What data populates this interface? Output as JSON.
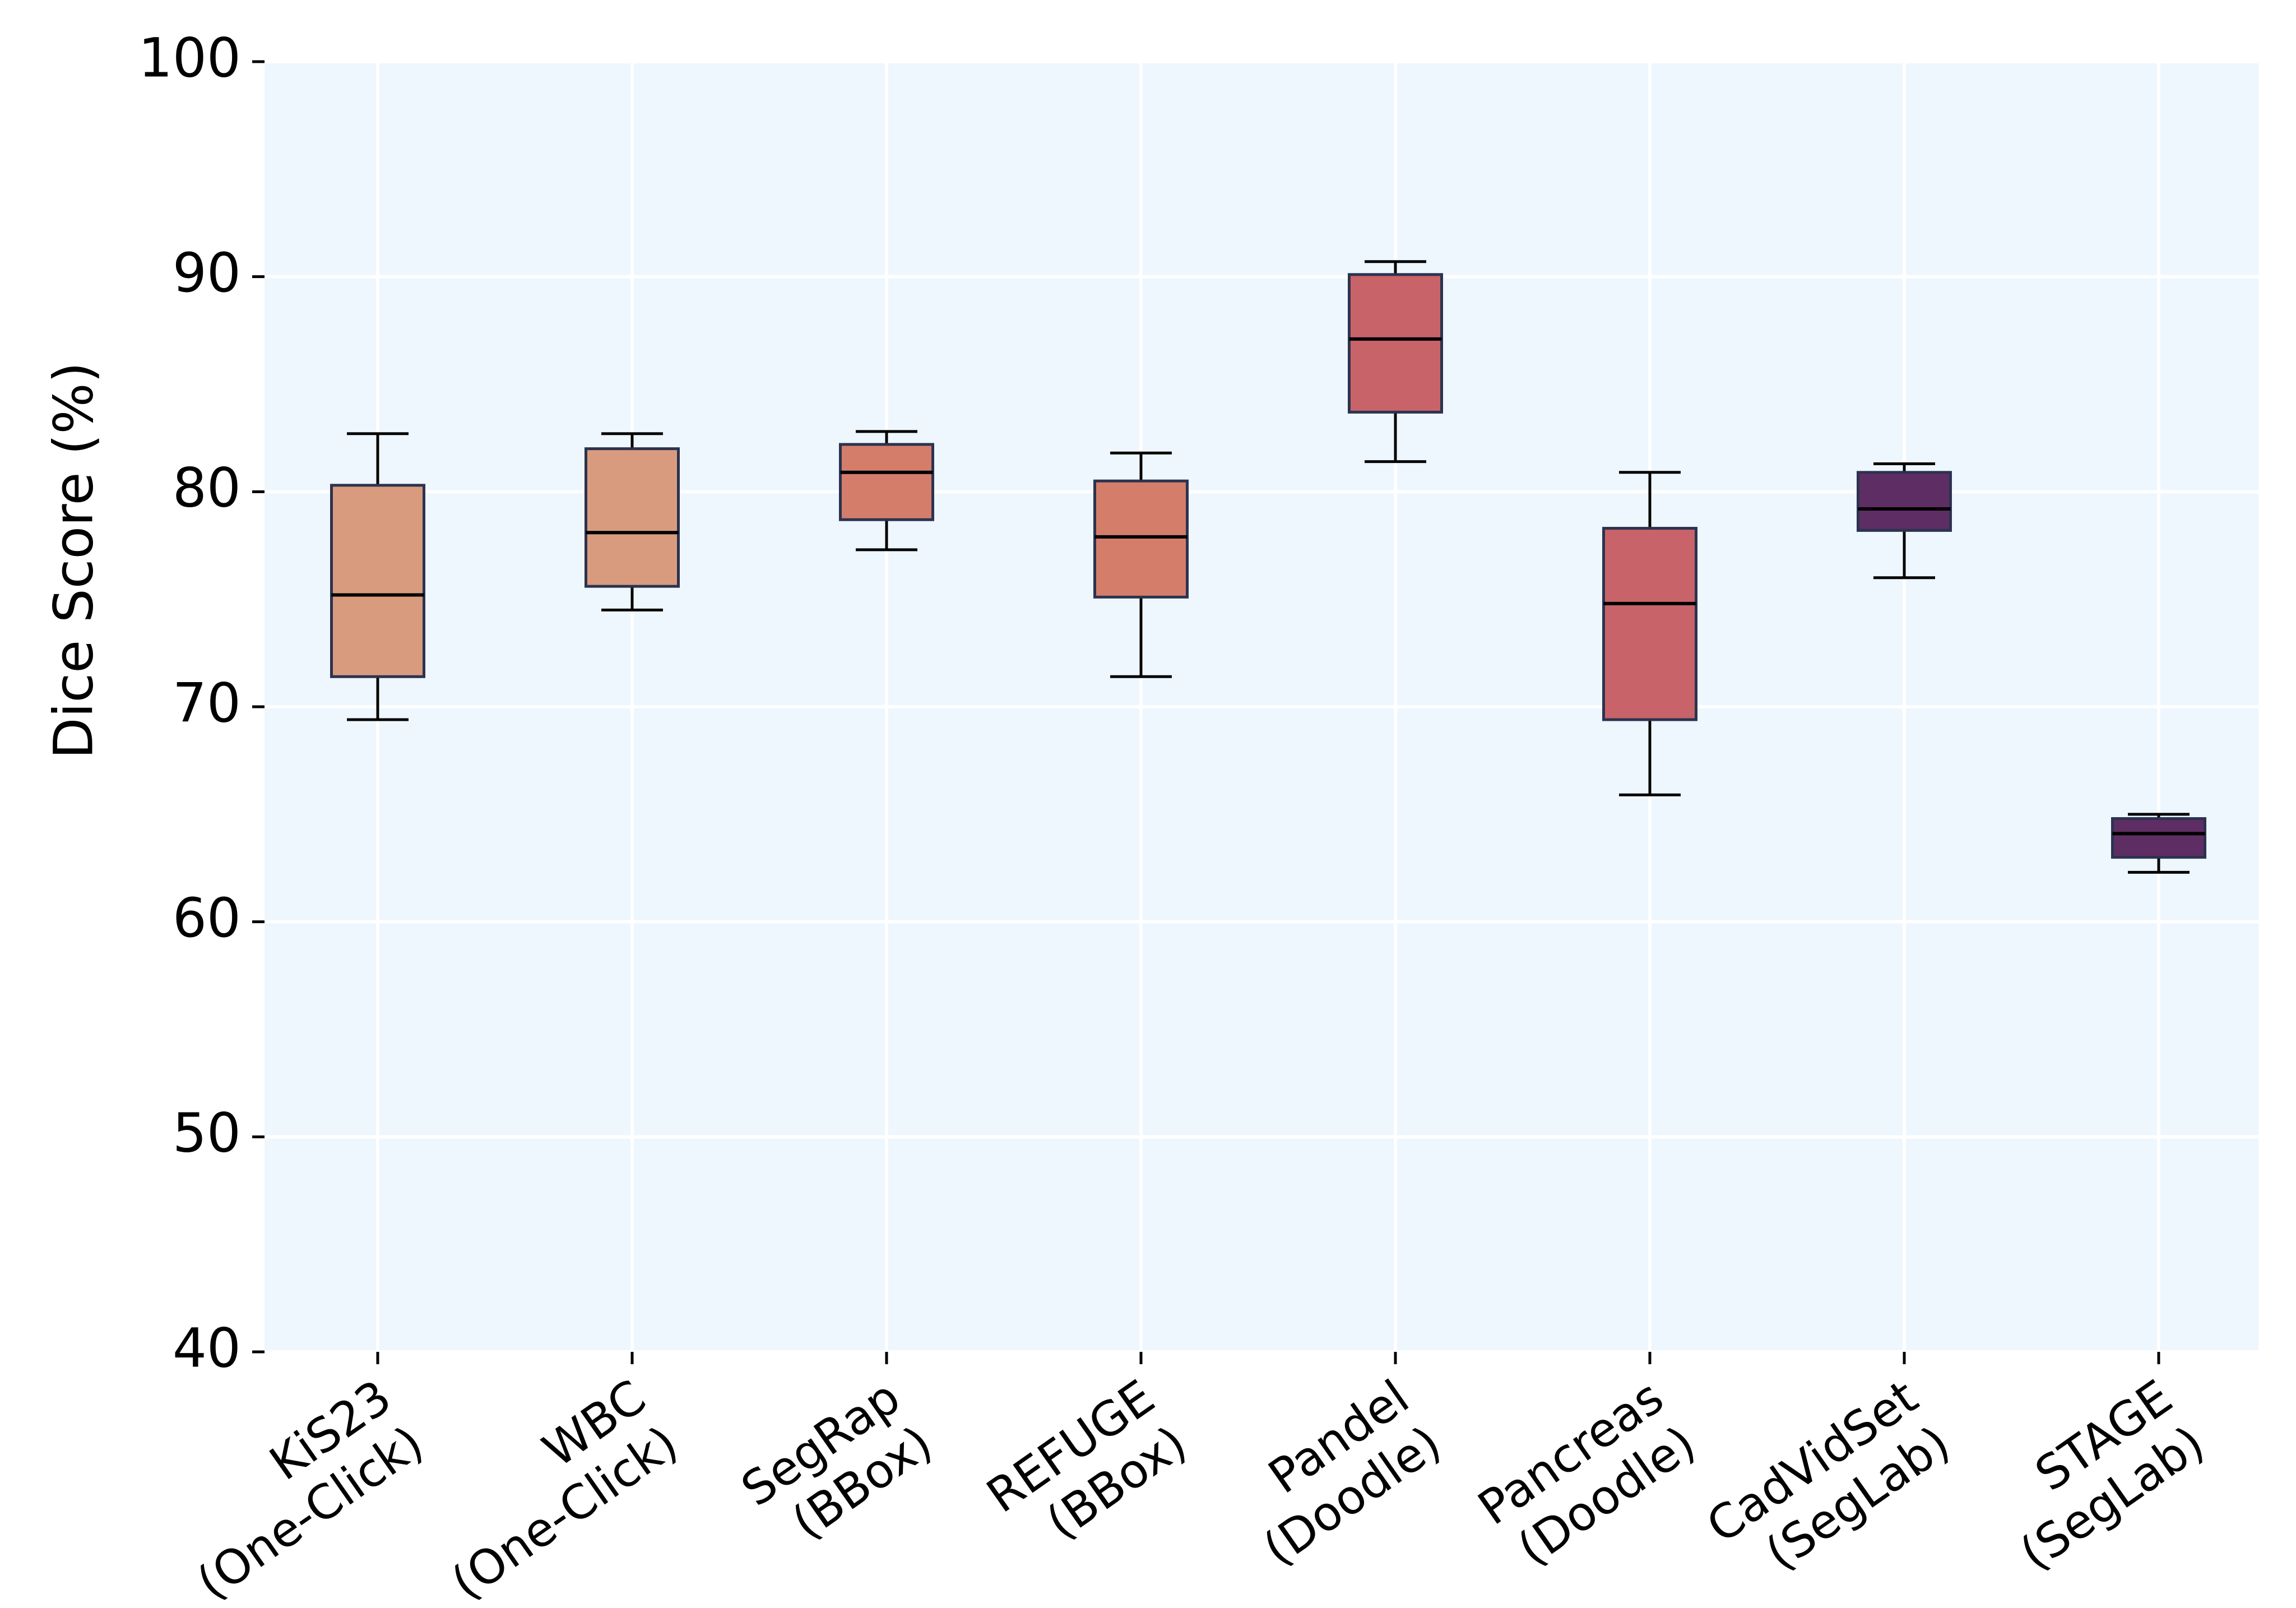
{
  "chart_data": {
    "type": "box",
    "title": "",
    "xlabel": "",
    "ylabel": "Dice Score (%)",
    "ylim": [
      40,
      100
    ],
    "yticks": [
      40,
      50,
      60,
      70,
      80,
      90,
      100
    ],
    "grid": true,
    "legend": "none",
    "categories": [
      "KiS23\n(One-Click)",
      "WBC\n(One-Click)",
      "SegRap\n(BBox)",
      "REFUGE\n(BBox)",
      "Pandel\n(Doodle)",
      "Pancreas\n(Doodle)",
      "CadVidSet\n(SegLab)",
      "STAGE\n(SegLab)"
    ],
    "boxes": [
      {
        "whisker_low": 69.4,
        "q1": 71.4,
        "median": 75.2,
        "q3": 80.3,
        "whisker_high": 82.7,
        "color": "#d99b7e"
      },
      {
        "whisker_low": 74.5,
        "q1": 75.6,
        "median": 78.1,
        "q3": 82.0,
        "whisker_high": 82.7,
        "color": "#d99b7e"
      },
      {
        "whisker_low": 77.3,
        "q1": 78.7,
        "median": 80.9,
        "q3": 82.2,
        "whisker_high": 82.8,
        "color": "#d57d6b"
      },
      {
        "whisker_low": 71.4,
        "q1": 75.1,
        "median": 77.9,
        "q3": 80.5,
        "whisker_high": 81.8,
        "color": "#d57d6b"
      },
      {
        "whisker_low": 81.4,
        "q1": 83.7,
        "median": 87.1,
        "q3": 90.1,
        "whisker_high": 90.7,
        "color": "#c86369"
      },
      {
        "whisker_low": 65.9,
        "q1": 69.4,
        "median": 74.8,
        "q3": 78.3,
        "whisker_high": 80.9,
        "color": "#c86369"
      },
      {
        "whisker_low": 76.0,
        "q1": 78.2,
        "median": 79.2,
        "q3": 80.9,
        "whisker_high": 81.3,
        "color": "#5e2d63"
      },
      {
        "whisker_low": 62.3,
        "q1": 63.0,
        "median": 64.1,
        "q3": 64.8,
        "whisker_high": 65.0,
        "color": "#5e2d63"
      }
    ],
    "colors": {
      "plot_background": "#eef6fe",
      "grid": "#ffffff",
      "box_edge": "#2b3350",
      "median_line": "#000000",
      "whisker": "#000000"
    }
  }
}
